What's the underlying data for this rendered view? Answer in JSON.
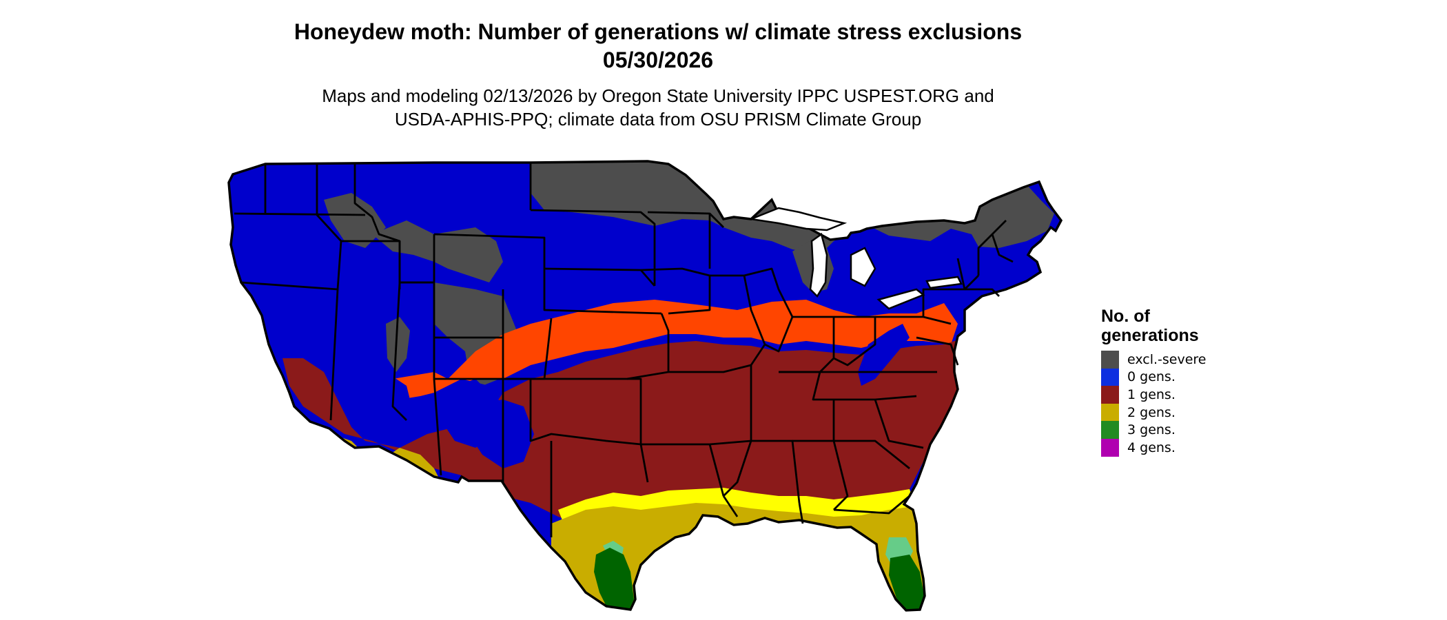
{
  "title_line1": "Honeydew moth: Number of generations w/ climate stress exclusions",
  "title_line2": "05/30/2026",
  "subtitle_line1": "Maps and modeling 02/13/2026 by Oregon State University IPPC USPEST.ORG and",
  "subtitle_line2": "USDA-APHIS-PPQ; climate data from OSU PRISM Climate Group",
  "legend": {
    "title_line1": "No. of",
    "title_line2": "generations",
    "items": [
      {
        "label": "excl.-severe",
        "color": "#4d4d4d"
      },
      {
        "label": "0 gens.",
        "color": "#0d2fe0"
      },
      {
        "label": "1 gens.",
        "color": "#8b1a1a"
      },
      {
        "label": "2 gens.",
        "color": "#c9ad00"
      },
      {
        "label": "3 gens.",
        "color": "#228b22"
      },
      {
        "label": "4 gens.",
        "color": "#b000b0"
      }
    ]
  },
  "map_colors": {
    "excluded": "#4d4d4d",
    "zero": "#0000cc",
    "one": "#8b1a1a",
    "one_margin": "#ff4500",
    "two": "#c9ad00",
    "two_margin": "#ffff00",
    "three": "#006400",
    "three_margin": "#66cc88"
  }
}
